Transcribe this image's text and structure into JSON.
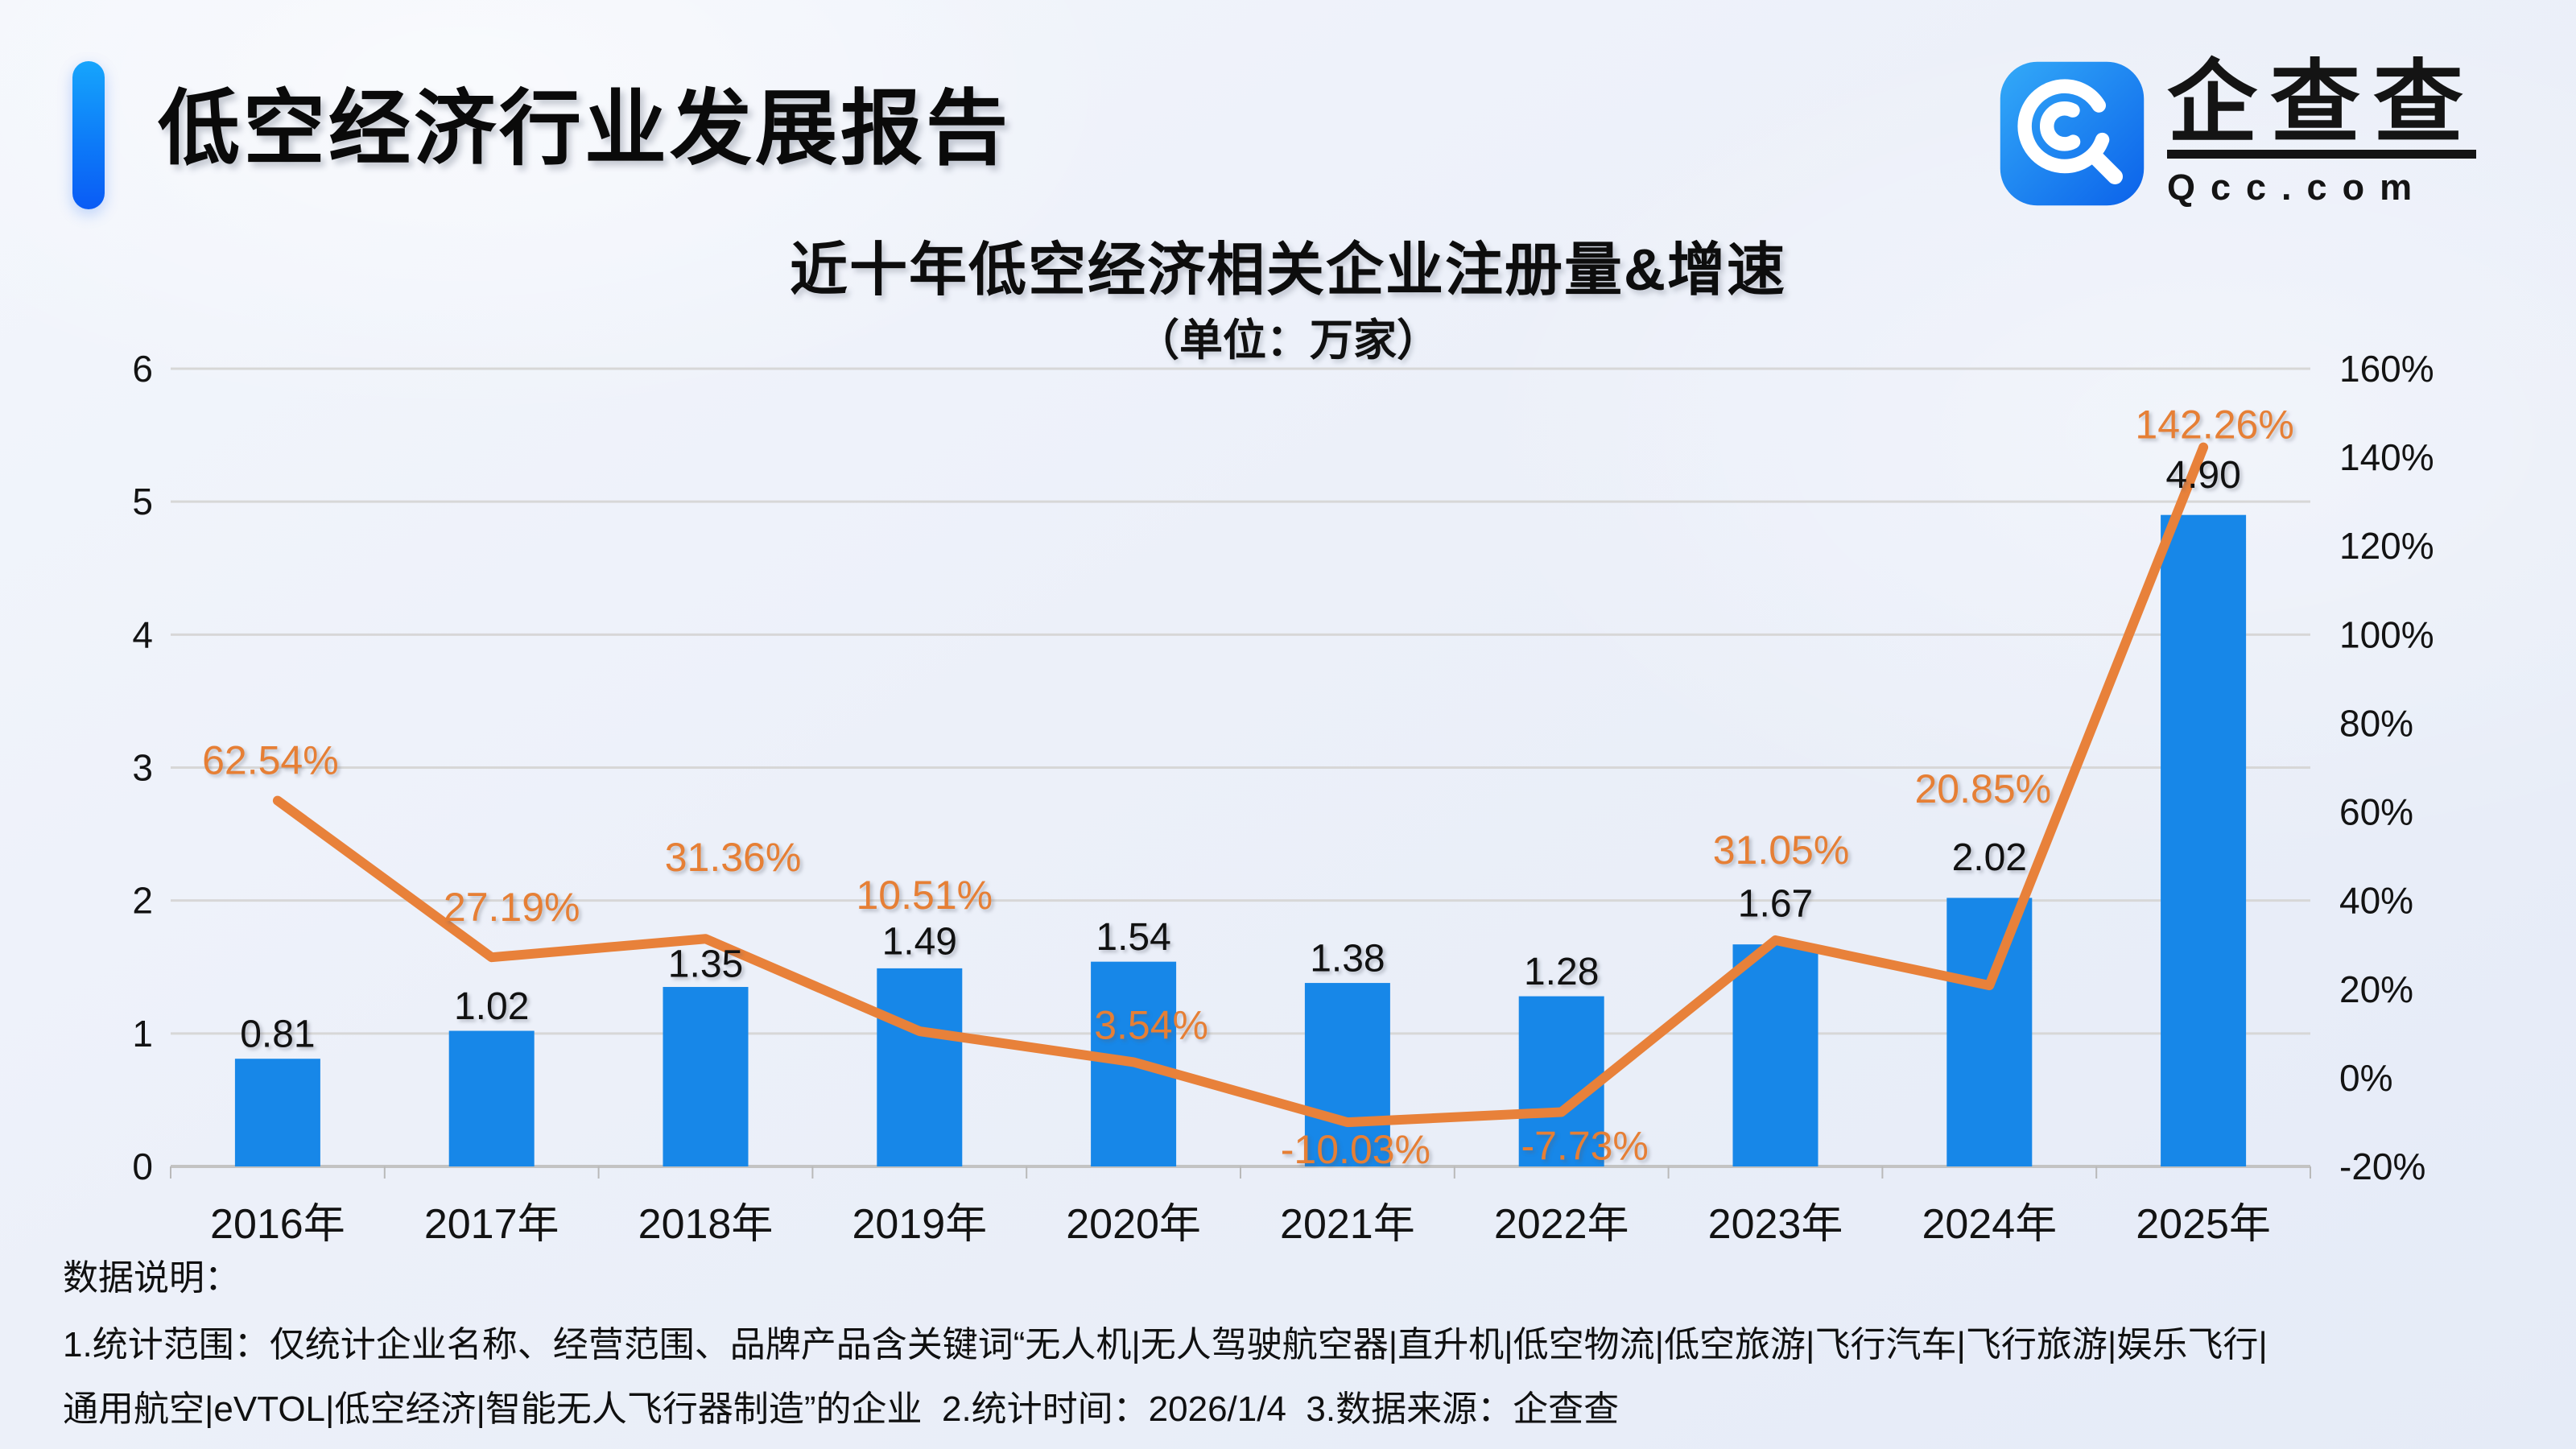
{
  "header": {
    "title": "低空经济行业发展报告"
  },
  "logo": {
    "brand": "企查查",
    "domain": "Qcc.com",
    "icon": "qcc-magnifier-icon",
    "icon_color_top": "#30a8f8",
    "icon_color_bottom": "#0b62ea"
  },
  "chart_data": {
    "type": "bar+line",
    "title": "近十年低空经济相关企业注册量&增速",
    "subtitle": "（单位：万家）",
    "categories": [
      "2016年",
      "2017年",
      "2018年",
      "2019年",
      "2020年",
      "2021年",
      "2022年",
      "2023年",
      "2024年",
      "2025年"
    ],
    "series": [
      {
        "name": "注册量（万家）",
        "type": "bar",
        "color": "#1787e8",
        "values": [
          0.81,
          1.02,
          1.35,
          1.49,
          1.54,
          1.38,
          1.28,
          1.67,
          2.02,
          4.9
        ],
        "labels": [
          "0.81",
          "1.02",
          "1.35",
          "1.49",
          "1.54",
          "1.38",
          "1.28",
          "1.67",
          "2.02",
          "4.90"
        ]
      },
      {
        "name": "增速",
        "type": "line",
        "color": "#e8813a",
        "values": [
          62.54,
          27.19,
          31.36,
          10.51,
          3.54,
          -10.03,
          -7.73,
          31.05,
          20.85,
          142.26
        ],
        "labels": [
          "62.54%",
          "27.19%",
          "31.36%",
          "10.51%",
          "3.54%",
          "-10.03%",
          "-7.73%",
          "31.05%",
          "20.85%",
          "142.26%"
        ]
      }
    ],
    "left_axis": {
      "min": 0,
      "max": 6,
      "ticks": [
        "6",
        "5",
        "4",
        "3",
        "2",
        "1",
        "0"
      ]
    },
    "right_axis": {
      "min": -20,
      "max": 160,
      "ticks": [
        "160%",
        "140%",
        "120%",
        "100%",
        "80%",
        "60%",
        "40%",
        "20%",
        "0%",
        "-20%"
      ]
    },
    "grid": true,
    "legend_position": "none"
  },
  "footer": {
    "heading": "数据说明：",
    "line1": "1.统计范围：仅统计企业名称、经营范围、品牌产品含关键词“无人机|无人驾驶航空器|直升机|低空物流|低空旅游|飞行汽车|飞行旅游|娱乐飞行|",
    "line2": "通用航空|eVTOL|低空经济|智能无人飞行器制造”的企业  2.统计时间：2026/1/4  3.数据来源：企查查"
  },
  "colors": {
    "bar": "#1787e8",
    "line": "#e8813a",
    "grid": "#d7d7d7",
    "axis": "#c3c3c3",
    "text": "#131313"
  }
}
